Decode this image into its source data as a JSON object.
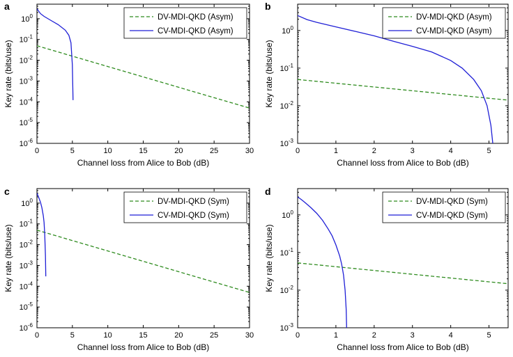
{
  "chart_data": [
    {
      "panel": "a",
      "type": "line",
      "yscale": "log",
      "xlabel": "Channel loss from Alice to Bob (dB)",
      "ylabel": "Key rate (bits/use)",
      "xlim": [
        0,
        30
      ],
      "ylim_exp": [
        -6,
        0.7
      ],
      "xticks": [
        0,
        5,
        10,
        15,
        20,
        25,
        30
      ],
      "yticks_exp": [
        -6,
        -5,
        -4,
        -3,
        -2,
        -1,
        0
      ],
      "legend_position": "top-right",
      "series": [
        {
          "name": "DV-MDI-QKD (Asym)",
          "style": "dashed",
          "color": "#2e8b1e",
          "x": [
            0,
            5,
            10,
            15,
            20,
            25,
            30
          ],
          "y": [
            0.05,
            0.0158,
            0.005,
            0.00158,
            0.0005,
            0.000158,
            5e-05
          ]
        },
        {
          "name": "CV-MDI-QKD (Asym)",
          "style": "solid",
          "color": "#1f1fd6",
          "x": [
            0,
            0.5,
            1,
            2,
            3,
            4,
            4.5,
            4.8,
            5.0,
            5.1
          ],
          "y": [
            3.0,
            1.75,
            1.3,
            0.82,
            0.52,
            0.28,
            0.16,
            0.07,
            0.006,
            0.00012
          ]
        }
      ]
    },
    {
      "panel": "b",
      "type": "line",
      "yscale": "log",
      "xlabel": "Channel loss from Alice to Bob (dB)",
      "ylabel": "Key rate (bits/use)",
      "xlim": [
        0,
        5.5
      ],
      "ylim_exp": [
        -3,
        0.7
      ],
      "xticks": [
        0,
        1,
        2,
        3,
        4,
        5
      ],
      "yticks_exp": [
        -3,
        -2,
        -1,
        0
      ],
      "legend_position": "top-right",
      "series": [
        {
          "name": "DV-MDI-QKD (Asym)",
          "style": "dashed",
          "color": "#2e8b1e",
          "x": [
            0,
            5.5
          ],
          "y": [
            0.05,
            0.0141
          ]
        },
        {
          "name": "CV-MDI-QKD (Asym)",
          "style": "solid",
          "color": "#1f1fd6",
          "x": [
            0,
            0.25,
            0.5,
            1,
            1.5,
            2,
            2.5,
            3,
            3.5,
            4,
            4.3,
            4.6,
            4.8,
            4.95,
            5.05,
            5.1
          ],
          "y": [
            2.5,
            1.95,
            1.65,
            1.25,
            0.95,
            0.72,
            0.52,
            0.38,
            0.27,
            0.16,
            0.1,
            0.05,
            0.025,
            0.01,
            0.003,
            0.001
          ]
        }
      ]
    },
    {
      "panel": "c",
      "type": "line",
      "yscale": "log",
      "xlabel": "Channel loss from Alice to Bob (dB)",
      "ylabel": "Key rate (bits/use)",
      "xlim": [
        0,
        30
      ],
      "ylim_exp": [
        -6,
        0.7
      ],
      "xticks": [
        0,
        5,
        10,
        15,
        20,
        25,
        30
      ],
      "yticks_exp": [
        -6,
        -5,
        -4,
        -3,
        -2,
        -1,
        0
      ],
      "legend_position": "top-right",
      "series": [
        {
          "name": "DV-MDI-QKD (Sym)",
          "style": "dashed",
          "color": "#2e8b1e",
          "x": [
            0,
            5,
            10,
            15,
            20,
            25,
            30
          ],
          "y": [
            0.05,
            0.0158,
            0.005,
            0.00158,
            0.0005,
            0.000158,
            5e-05
          ]
        },
        {
          "name": "CV-MDI-QKD (Sym)",
          "style": "solid",
          "color": "#1f1fd6",
          "x": [
            0,
            0.15,
            0.3,
            0.5,
            0.7,
            0.9,
            1.0,
            1.1,
            1.2,
            1.25
          ],
          "y": [
            3.0,
            2.3,
            1.7,
            1.1,
            0.6,
            0.25,
            0.12,
            0.03,
            0.003,
            0.0003
          ]
        }
      ]
    },
    {
      "panel": "d",
      "type": "line",
      "yscale": "log",
      "xlabel": "Channel loss from Alice to Bob (dB)",
      "ylabel": "Key rate (bits/use)",
      "xlim": [
        0,
        5.5
      ],
      "ylim_exp": [
        -3,
        0.7
      ],
      "xticks": [
        0,
        1,
        2,
        3,
        4,
        5
      ],
      "yticks_exp": [
        -3,
        -2,
        -1,
        0
      ],
      "legend_position": "top-right",
      "series": [
        {
          "name": "DV-MDI-QKD (Sym)",
          "style": "dashed",
          "color": "#2e8b1e",
          "x": [
            0,
            5.5
          ],
          "y": [
            0.053,
            0.0148
          ]
        },
        {
          "name": "CV-MDI-QKD (Sym)",
          "style": "solid",
          "color": "#1f1fd6",
          "x": [
            0,
            0.1,
            0.2,
            0.35,
            0.5,
            0.65,
            0.8,
            0.9,
            1.0,
            1.1,
            1.15,
            1.2,
            1.24,
            1.27,
            1.28
          ],
          "y": [
            3.0,
            2.55,
            2.1,
            1.55,
            1.1,
            0.72,
            0.42,
            0.28,
            0.16,
            0.08,
            0.05,
            0.025,
            0.01,
            0.003,
            0.001
          ]
        }
      ]
    }
  ]
}
